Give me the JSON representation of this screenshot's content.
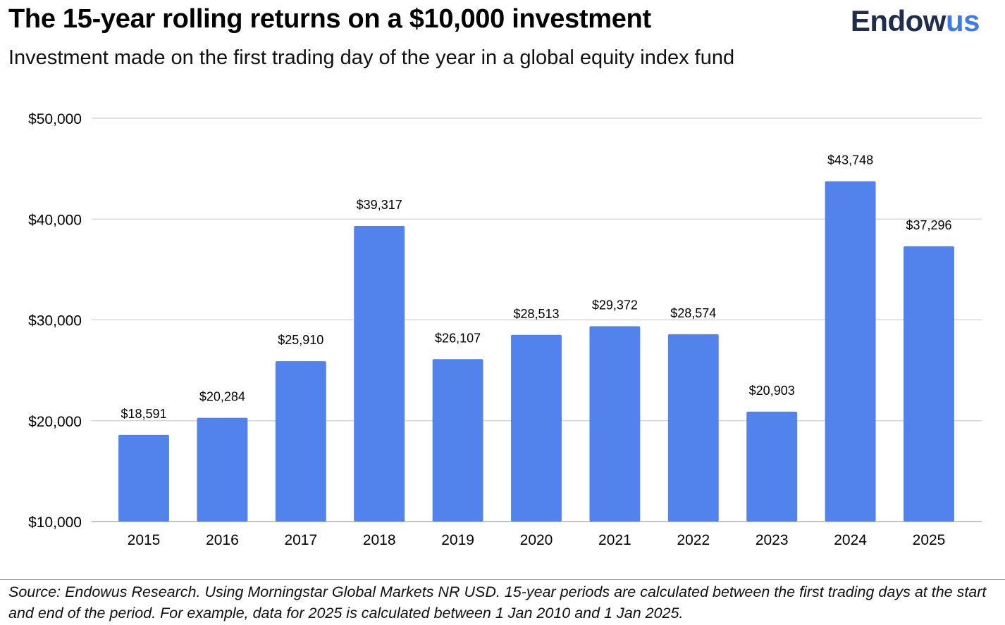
{
  "header": {
    "title": "The 15-year rolling returns on a $10,000 investment",
    "subtitle": "Investment made on the first trading day of the year in a global equity index fund"
  },
  "logo": {
    "text_main": "Endow",
    "text_accent": "us",
    "color_main": "#1f2d4b",
    "color_accent": "#3f7be8"
  },
  "chart_data": {
    "type": "bar",
    "title": "The 15-year rolling returns on a $10,000 investment",
    "subtitle": "Investment made on the first trading day of the year in a global equity index fund",
    "categories": [
      "2015",
      "2016",
      "2017",
      "2018",
      "2019",
      "2020",
      "2021",
      "2022",
      "2023",
      "2024",
      "2025"
    ],
    "values": [
      18591,
      20284,
      25910,
      39317,
      26107,
      28513,
      29372,
      28574,
      20903,
      43748,
      37296
    ],
    "data_labels": [
      "$18,591",
      "$20,284",
      "$25,910",
      "$39,317",
      "$26,107",
      "$28,513",
      "$29,372",
      "$28,574",
      "$20,903",
      "$43,748",
      "$37,296"
    ],
    "ylim": [
      10000,
      50000
    ],
    "yticks": [
      10000,
      20000,
      30000,
      40000,
      50000
    ],
    "ytick_labels": [
      "$10,000",
      "$20,000",
      "$30,000",
      "$40,000",
      "$50,000"
    ],
    "xlabel": "",
    "ylabel": "",
    "grid": true,
    "legend": "none",
    "bar_color": "#5283ec"
  },
  "footnote": "Source: Endowus Research. Using Morningstar Global Markets NR USD. 15-year periods are calculated between the first trading days at the start and end of the period. For example, data for 2025 is calculated between 1 Jan 2010 and 1 Jan 2025."
}
